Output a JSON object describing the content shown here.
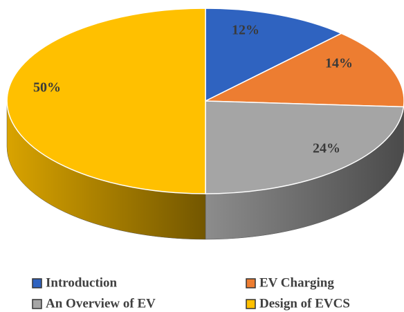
{
  "chart_data": {
    "type": "pie3d",
    "categories": [
      "Introduction",
      "EV Charging",
      "An Overview of EV",
      "Design of EVCS"
    ],
    "values": [
      12,
      14,
      24,
      50
    ],
    "value_labels": [
      "12%",
      "14%",
      "24%",
      "50%"
    ],
    "colors": [
      "#2f63c0",
      "#ed7d31",
      "#a5a5a5",
      "#ffc000"
    ],
    "legend": "bottom"
  }
}
